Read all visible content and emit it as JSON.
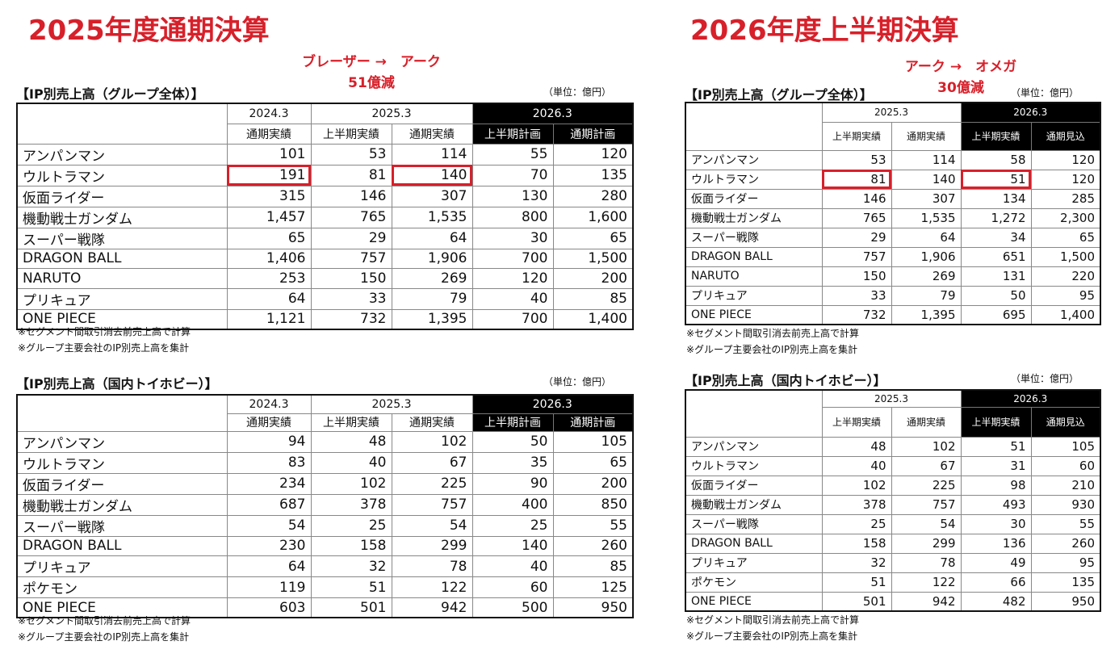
{
  "left": {
    "title": "2025年度通期決算",
    "annotation": [
      "ブレーザー →　アーク",
      "51億減"
    ],
    "tables": [
      {
        "title": "【IP別売上高（グループ全体）】",
        "unit": "（単位：億円）",
        "years": [
          "2024.3",
          "2025.3",
          "2026.3"
        ],
        "cols": [
          "通期実績",
          "上半期実績",
          "通期実績",
          "上半期計画",
          "通期計画"
        ],
        "rows": [
          {
            "name": "アンパンマン",
            "v": [
              "101",
              "53",
              "114",
              "55",
              "120"
            ]
          },
          {
            "name": "ウルトラマン",
            "v": [
              "191",
              "81",
              "140",
              "70",
              "135"
            ]
          },
          {
            "name": "仮面ライダー",
            "v": [
              "315",
              "146",
              "307",
              "130",
              "280"
            ]
          },
          {
            "name": "機動戦士ガンダム",
            "v": [
              "1,457",
              "765",
              "1,535",
              "800",
              "1,600"
            ]
          },
          {
            "name": "スーパー戦隊",
            "v": [
              "65",
              "29",
              "64",
              "30",
              "65"
            ]
          },
          {
            "name": "DRAGON BALL",
            "v": [
              "1,406",
              "757",
              "1,906",
              "700",
              "1,500"
            ]
          },
          {
            "name": "NARUTO",
            "v": [
              "253",
              "150",
              "269",
              "120",
              "200"
            ]
          },
          {
            "name": "プリキュア",
            "v": [
              "64",
              "33",
              "79",
              "40",
              "85"
            ]
          },
          {
            "name": "ONE PIECE",
            "v": [
              "1,121",
              "732",
              "1,395",
              "700",
              "1,400"
            ]
          }
        ],
        "notes": [
          "※セグメント間取引消去前売上高で計算",
          "※グループ主要会社のIP別売上高を集計"
        ]
      },
      {
        "title": "【IP別売上高（国内トイホビー）】",
        "unit": "（単位：億円）",
        "years": [
          "2024.3",
          "2025.3",
          "2026.3"
        ],
        "cols": [
          "通期実績",
          "上半期実績",
          "通期実績",
          "上半期計画",
          "通期計画"
        ],
        "rows": [
          {
            "name": "アンパンマン",
            "v": [
              "94",
              "48",
              "102",
              "50",
              "105"
            ]
          },
          {
            "name": "ウルトラマン",
            "v": [
              "83",
              "40",
              "67",
              "35",
              "65"
            ]
          },
          {
            "name": "仮面ライダー",
            "v": [
              "234",
              "102",
              "225",
              "90",
              "200"
            ]
          },
          {
            "name": "機動戦士ガンダム",
            "v": [
              "687",
              "378",
              "757",
              "400",
              "850"
            ]
          },
          {
            "name": "スーパー戦隊",
            "v": [
              "54",
              "25",
              "54",
              "25",
              "55"
            ]
          },
          {
            "name": "DRAGON BALL",
            "v": [
              "230",
              "158",
              "299",
              "140",
              "260"
            ]
          },
          {
            "name": "プリキュア",
            "v": [
              "64",
              "32",
              "78",
              "40",
              "85"
            ]
          },
          {
            "name": "ポケモン",
            "v": [
              "119",
              "51",
              "122",
              "60",
              "125"
            ]
          },
          {
            "name": "ONE PIECE",
            "v": [
              "603",
              "501",
              "942",
              "500",
              "950"
            ]
          }
        ],
        "notes": [
          "※セグメント間取引消去前売上高で計算",
          "※グループ主要会社のIP別売上高を集計"
        ]
      }
    ]
  },
  "right": {
    "title": "2026年度上半期決算",
    "annotation": [
      "アーク →　オメガ",
      "30億減"
    ],
    "tables": [
      {
        "title": "【IP別売上高（グループ全体）】",
        "unit": "（単位：億円）",
        "years": [
          "2025.3",
          "2026.3"
        ],
        "cols": [
          "上半期実績",
          "通期実績",
          "上半期実績",
          "通期見込"
        ],
        "rows": [
          {
            "name": "アンパンマン",
            "v": [
              "53",
              "114",
              "58",
              "120"
            ]
          },
          {
            "name": "ウルトラマン",
            "v": [
              "81",
              "140",
              "51",
              "120"
            ]
          },
          {
            "name": "仮面ライダー",
            "v": [
              "146",
              "307",
              "134",
              "285"
            ]
          },
          {
            "name": "機動戦士ガンダム",
            "v": [
              "765",
              "1,535",
              "1,272",
              "2,300"
            ]
          },
          {
            "name": "スーパー戦隊",
            "v": [
              "29",
              "64",
              "34",
              "65"
            ]
          },
          {
            "name": "DRAGON BALL",
            "v": [
              "757",
              "1,906",
              "651",
              "1,500"
            ]
          },
          {
            "name": "NARUTO",
            "v": [
              "150",
              "269",
              "131",
              "220"
            ]
          },
          {
            "name": "プリキュア",
            "v": [
              "33",
              "79",
              "50",
              "95"
            ]
          },
          {
            "name": "ONE PIECE",
            "v": [
              "732",
              "1,395",
              "695",
              "1,400"
            ]
          }
        ],
        "notes": [
          "※セグメント間取引消去前売上高で計算",
          "※グループ主要会社のIP別売上高を集計"
        ]
      },
      {
        "title": "【IP別売上高（国内トイホビー）】",
        "unit": "（単位：億円）",
        "years": [
          "2025.3",
          "2026.3"
        ],
        "cols": [
          "上半期実績",
          "通期実績",
          "上半期実績",
          "通期見込"
        ],
        "rows": [
          {
            "name": "アンパンマン",
            "v": [
              "48",
              "102",
              "51",
              "105"
            ]
          },
          {
            "name": "ウルトラマン",
            "v": [
              "40",
              "67",
              "31",
              "60"
            ]
          },
          {
            "name": "仮面ライダー",
            "v": [
              "102",
              "225",
              "98",
              "210"
            ]
          },
          {
            "name": "機動戦士ガンダム",
            "v": [
              "378",
              "757",
              "493",
              "930"
            ]
          },
          {
            "name": "スーパー戦隊",
            "v": [
              "25",
              "54",
              "30",
              "55"
            ]
          },
          {
            "name": "DRAGON BALL",
            "v": [
              "158",
              "299",
              "136",
              "260"
            ]
          },
          {
            "name": "プリキュア",
            "v": [
              "32",
              "78",
              "49",
              "95"
            ]
          },
          {
            "name": "ポケモン",
            "v": [
              "51",
              "122",
              "66",
              "135"
            ]
          },
          {
            "name": "ONE PIECE",
            "v": [
              "501",
              "942",
              "482",
              "950"
            ]
          }
        ],
        "notes": [
          "※セグメント間取引消去前売上高で計算",
          "※グループ主要会社のIP別売上高を集計"
        ]
      }
    ]
  },
  "highlight_color": "#d7202a"
}
